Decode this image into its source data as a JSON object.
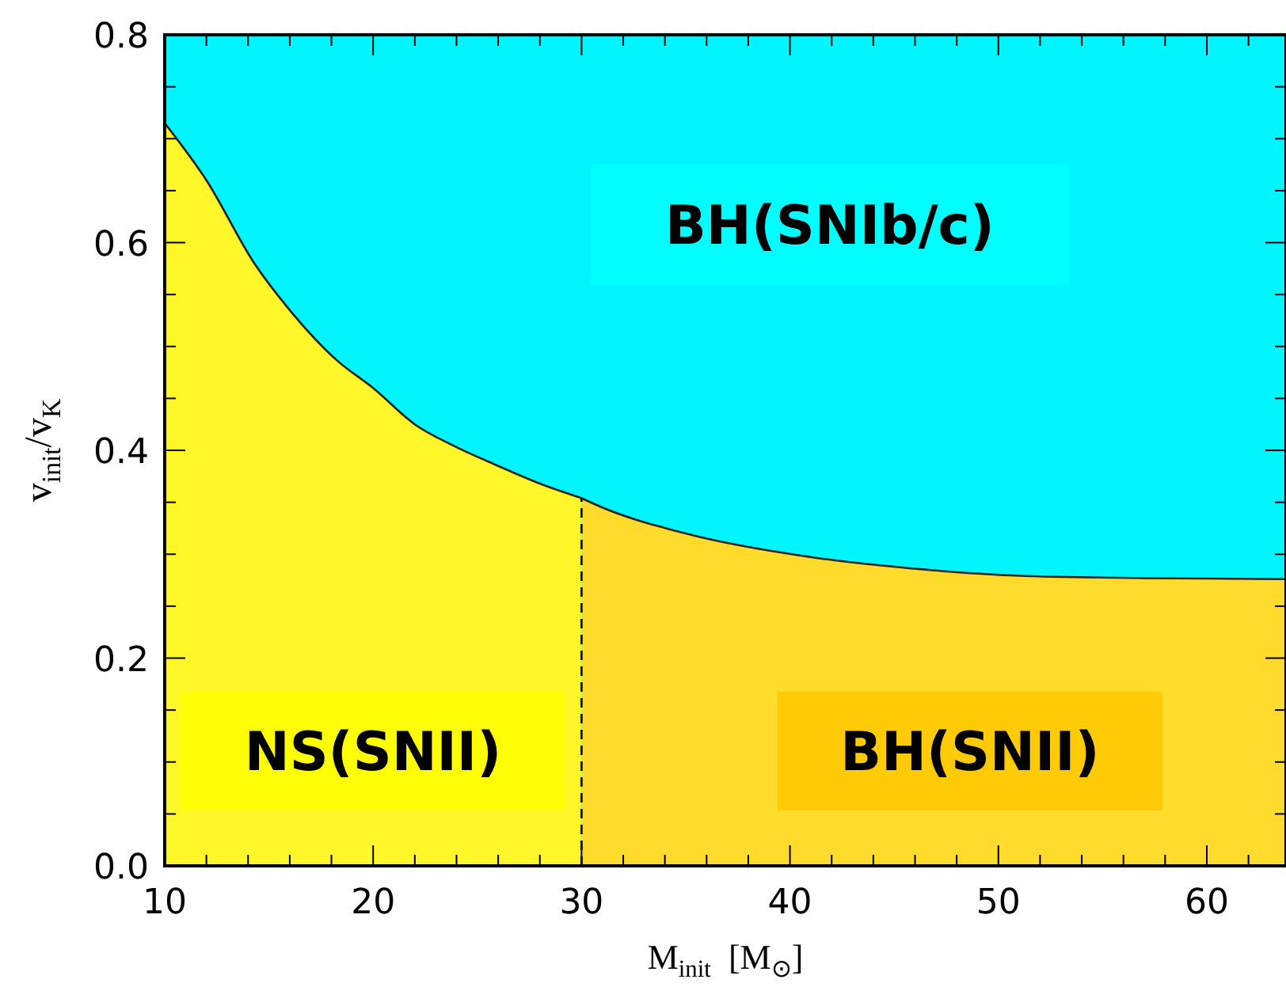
{
  "chart_data": {
    "type": "area",
    "xlabel": "M$_{init}$  [M$_{⊙}$]",
    "ylabel": "v$_{init}$/v$_{K}$",
    "xlim": [
      10,
      63.8
    ],
    "ylim": [
      0,
      0.8
    ],
    "xticks": [
      10,
      {
        "value": 12,
        "label": null
      },
      {
        "value": 14,
        "label": null
      },
      {
        "value": 16,
        "label": null
      },
      {
        "value": 18,
        "label": null
      },
      20,
      {
        "value": 22,
        "label": null
      },
      {
        "value": 24,
        "label": null
      },
      {
        "value": 26,
        "label": null
      },
      {
        "value": 28,
        "label": null
      },
      30,
      {
        "value": 32,
        "label": null
      },
      {
        "value": 34,
        "label": null
      },
      {
        "value": 36,
        "label": null
      },
      {
        "value": 38,
        "label": null
      },
      40,
      {
        "value": 42,
        "label": null
      },
      {
        "value": 44,
        "label": null
      },
      {
        "value": 46,
        "label": null
      },
      {
        "value": 48,
        "label": null
      },
      50,
      {
        "value": 52,
        "label": null
      },
      {
        "value": 54,
        "label": null
      },
      {
        "value": 56,
        "label": null
      },
      {
        "value": 58,
        "label": null
      },
      60,
      {
        "value": 62,
        "label": null
      }
    ],
    "yticks": [
      {
        "value": 0,
        "label": "0.0"
      },
      {
        "value": 0.05,
        "label": null
      },
      {
        "value": 0.1,
        "label": null
      },
      {
        "value": 0.15,
        "label": null
      },
      {
        "value": 0.2,
        "label": "0.2"
      },
      {
        "value": 0.25,
        "label": null
      },
      {
        "value": 0.3,
        "label": null
      },
      {
        "value": 0.35,
        "label": null
      },
      {
        "value": 0.4,
        "label": "0.4"
      },
      {
        "value": 0.45,
        "label": null
      },
      {
        "value": 0.5,
        "label": null
      },
      {
        "value": 0.55,
        "label": null
      },
      {
        "value": 0.6,
        "label": "0.6"
      },
      {
        "value": 0.65,
        "label": null
      },
      {
        "value": 0.7,
        "label": null
      },
      {
        "value": 0.75,
        "label": null
      },
      {
        "value": 0.8,
        "label": "0.8"
      }
    ],
    "series": [
      {
        "color": "#fff72a",
        "x": [
          10,
          12,
          14.3,
          16,
          18.3,
          20,
          22,
          23.8,
          26,
          28,
          30
        ],
        "values": [
          0.715,
          0.66,
          0.58,
          0.535,
          0.486,
          0.46,
          0.425,
          0.405,
          0.385,
          0.368,
          0.354
        ]
      },
      {
        "color": "#ffdb2b",
        "x": [
          30,
          31,
          35,
          41.1,
          45,
          51.3,
          57,
          63.8
        ],
        "values": [
          0.354,
          0.345,
          0.32,
          0.297,
          0.288,
          0.279,
          0.277,
          0.276
        ]
      }
    ],
    "ref_lines": [
      {
        "axis": "x",
        "value": 30,
        "line_style": "dashed",
        "color": "#000000"
      }
    ],
    "bands": [
      {
        "axis": "y",
        "from": 0,
        "to": 0.8,
        "color": "#00f5ff"
      }
    ],
    "annotations": [
      "NS(SNII)",
      "BH(SNII)",
      "BH(SNIb/c)"
    ],
    "grid": false
  }
}
